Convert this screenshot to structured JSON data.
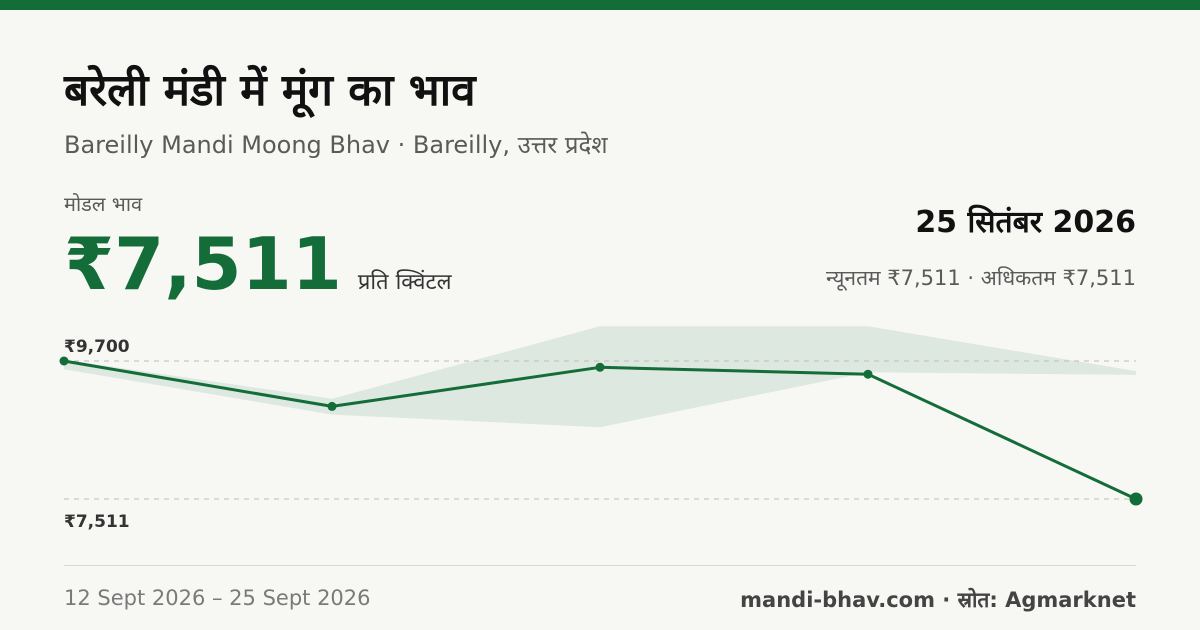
{
  "header": {
    "title": "बरेली मंडी में मूंग का भाव",
    "subtitle": "Bareilly Mandi Moong Bhav · Bareilly, उत्तर प्रदेश"
  },
  "price": {
    "label": "मोडल भाव",
    "value": "₹7,511",
    "unit": "प्रति क्विंटल"
  },
  "summary": {
    "date": "25 सितंबर 2026",
    "range": "न्यूनतम ₹7,511 · अधिकतम ₹7,511"
  },
  "footer": {
    "period": "12 Sept 2026 – 25 Sept 2026",
    "source": "mandi-bhav.com · स्रोत: Agmarknet"
  },
  "colors": {
    "accent": "#146c38",
    "band": "#dde8e0",
    "background": "#f7f7f4"
  },
  "chart_data": {
    "type": "line",
    "y_tick_labels": [
      "₹9,700",
      "₹7,511"
    ],
    "ylim": [
      7511,
      9700
    ],
    "grid": "dashed reference lines at ₹9,700 and ₹7,511",
    "legend": "none",
    "series": [
      {
        "values": [
          9700,
          8980,
          9600,
          9490,
          7511
        ]
      }
    ],
    "band": {
      "min": [
        9570,
        8850,
        8650,
        9520,
        9480
      ],
      "max": [
        9720,
        9100,
        10250,
        10250,
        9540
      ]
    }
  }
}
